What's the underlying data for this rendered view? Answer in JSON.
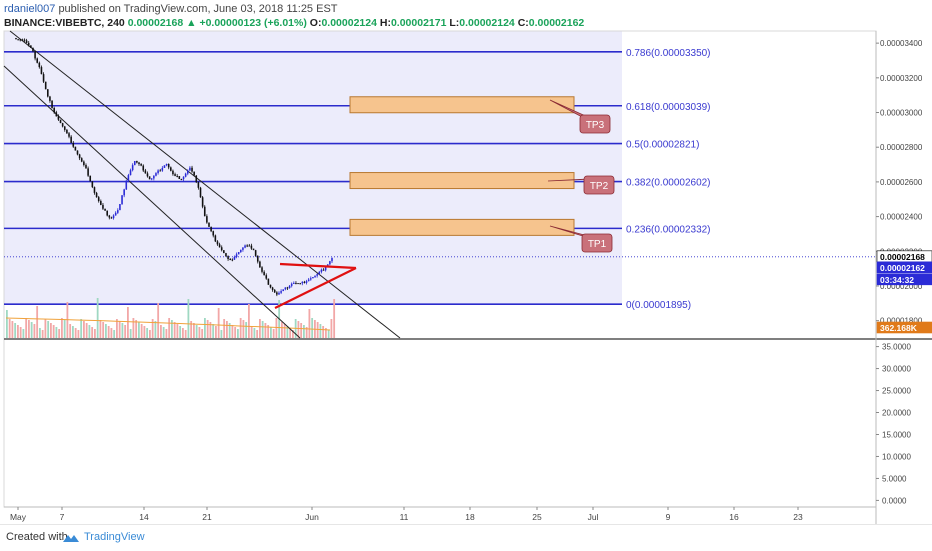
{
  "header": {
    "username": "rdaniel007",
    "published_text": "published on TradingView.com, June 03, 2018 11:25 EST",
    "symbol": "BINANCE:VIBEBTC, 240",
    "last": "0.00002168",
    "change_arrow": "▲",
    "change": "+0.00000123 (+6.01%)",
    "o_label": "O:",
    "o_value": "0.00002124",
    "h_label": "H:",
    "h_value": "0.00002171",
    "l_label": "L:",
    "l_value": "0.00002124",
    "c_label": "C:",
    "c_value": "0.00002162"
  },
  "footer": {
    "created_with": "Created with",
    "brand": "TradingView"
  },
  "colors": {
    "fib_line": "#2b2bcc",
    "fib_fill": "#ececfb",
    "tp_box": "#f6c48e",
    "tp_callout": "#c9717a",
    "candle_up": "#2b2bd6",
    "candle_down": "#111111",
    "triangle": "#e01010",
    "vol_up": "#9fd8c2",
    "vol_down": "#f2a7a7"
  },
  "chart_data": {
    "type": "candlestick",
    "price_axis_ticks": [
      "0.00003400",
      "0.00003200",
      "0.00003000",
      "0.00002800",
      "0.00002600",
      "0.00002400",
      "0.00002200",
      "0.00002000",
      "0.00001800"
    ],
    "price_tag_last": "0.00002168",
    "price_tag_close": "0.00002162",
    "price_tag_timer": "03:34:32",
    "volume_tag": "362.168K",
    "indicator_axis_ticks": [
      "35.0000",
      "30.0000",
      "25.0000",
      "20.0000",
      "15.0000",
      "10.0000",
      "5.0000",
      "0.0000"
    ],
    "x_ticks": [
      "May",
      "7",
      "14",
      "21",
      "Jun",
      "11",
      "18",
      "25",
      "Jul",
      "9",
      "16",
      "23"
    ],
    "fib_levels": [
      {
        "label": "0.786(0.00003350)",
        "price": 3.35e-05
      },
      {
        "label": "0.618(0.00003039)",
        "price": 3.039e-05
      },
      {
        "label": "0.5(0.00002821)",
        "price": 2.821e-05
      },
      {
        "label": "0.382(0.00002602)",
        "price": 2.602e-05
      },
      {
        "label": "0.236(0.00002332)",
        "price": 2.332e-05
      },
      {
        "label": "0(0.00001895)",
        "price": 1.895e-05
      }
    ],
    "targets": [
      {
        "label": "TP3",
        "price": 3.039e-05
      },
      {
        "label": "TP2",
        "price": 2.602e-05
      },
      {
        "label": "TP1",
        "price": 2.332e-05
      }
    ],
    "price_path": [
      3.43e-05,
      3.42e-05,
      3.36e-05,
      3.26e-05,
      3.09e-05,
      2.99e-05,
      2.91e-05,
      2.83e-05,
      2.74e-05,
      2.66e-05,
      2.53e-05,
      2.44e-05,
      2.39e-05,
      2.44e-05,
      2.62e-05,
      2.72e-05,
      2.68e-05,
      2.61e-05,
      2.66e-05,
      2.71e-05,
      2.63e-05,
      2.62e-05,
      2.68e-05,
      2.59e-05,
      2.38e-05,
      2.28e-05,
      2.21e-05,
      2.14e-05,
      2.19e-05,
      2.23e-05,
      2.22e-05,
      2.09e-05,
      2.01e-05,
      1.95e-05,
      1.98e-05,
      2.02e-05,
      2.01e-05,
      2.04e-05,
      2.06e-05,
      2.1e-05,
      2.16e-05
    ]
  }
}
